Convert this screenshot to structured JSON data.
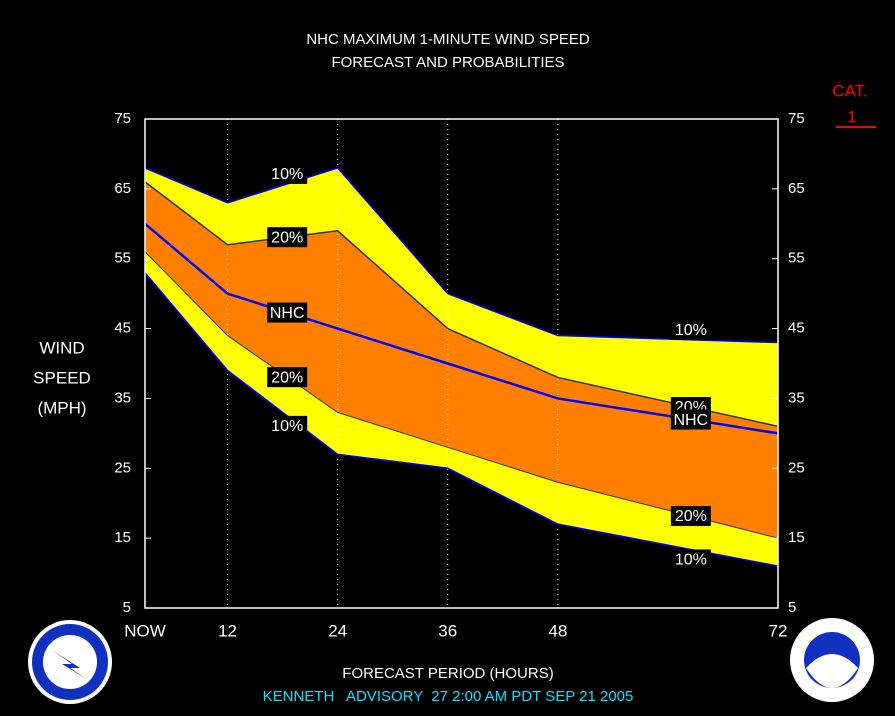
{
  "chart_data": {
    "type": "line",
    "title": "NHC MAXIMUM 1-MINUTE WIND SPEED",
    "subtitle": "FORECAST AND PROBABILITIES",
    "y_label": [
      "WIND",
      "SPEED",
      "(MPH)"
    ],
    "x_label": "FORECAST PERIOD (HOURS)",
    "footer": "KENNETH   ADVISORY  27 2:00 AM PDT SEP 21 2005",
    "category_label": "CAT.",
    "category": 1,
    "x": [
      3,
      12,
      24,
      36,
      48,
      72
    ],
    "xlim": [
      3,
      72
    ],
    "xticks": [
      {
        "value": 3,
        "label": "NOW"
      },
      12,
      24,
      36,
      48,
      72
    ],
    "ylim": [
      5,
      75
    ],
    "yticks": [
      5,
      15,
      25,
      35,
      45,
      55,
      65,
      75
    ],
    "grid": true,
    "series": [
      {
        "name": "10%",
        "color": "#0000ff",
        "fill": "#ffff00",
        "values": [
          68,
          63,
          68,
          50,
          44,
          43
        ]
      },
      {
        "name": "20%",
        "color": "#333333",
        "fill": "#ff8000",
        "values": [
          66,
          57,
          59,
          45,
          38,
          31
        ]
      },
      {
        "name": "NHC",
        "color": "#0000ff",
        "values": [
          60,
          50,
          45,
          40,
          35,
          30
        ]
      },
      {
        "name": "20%",
        "color": "#333333",
        "values": [
          56,
          44,
          33,
          28,
          23,
          15
        ]
      },
      {
        "name": "10%",
        "color": "#0000ff",
        "values": [
          53,
          39,
          27,
          25,
          17,
          11
        ]
      }
    ]
  }
}
